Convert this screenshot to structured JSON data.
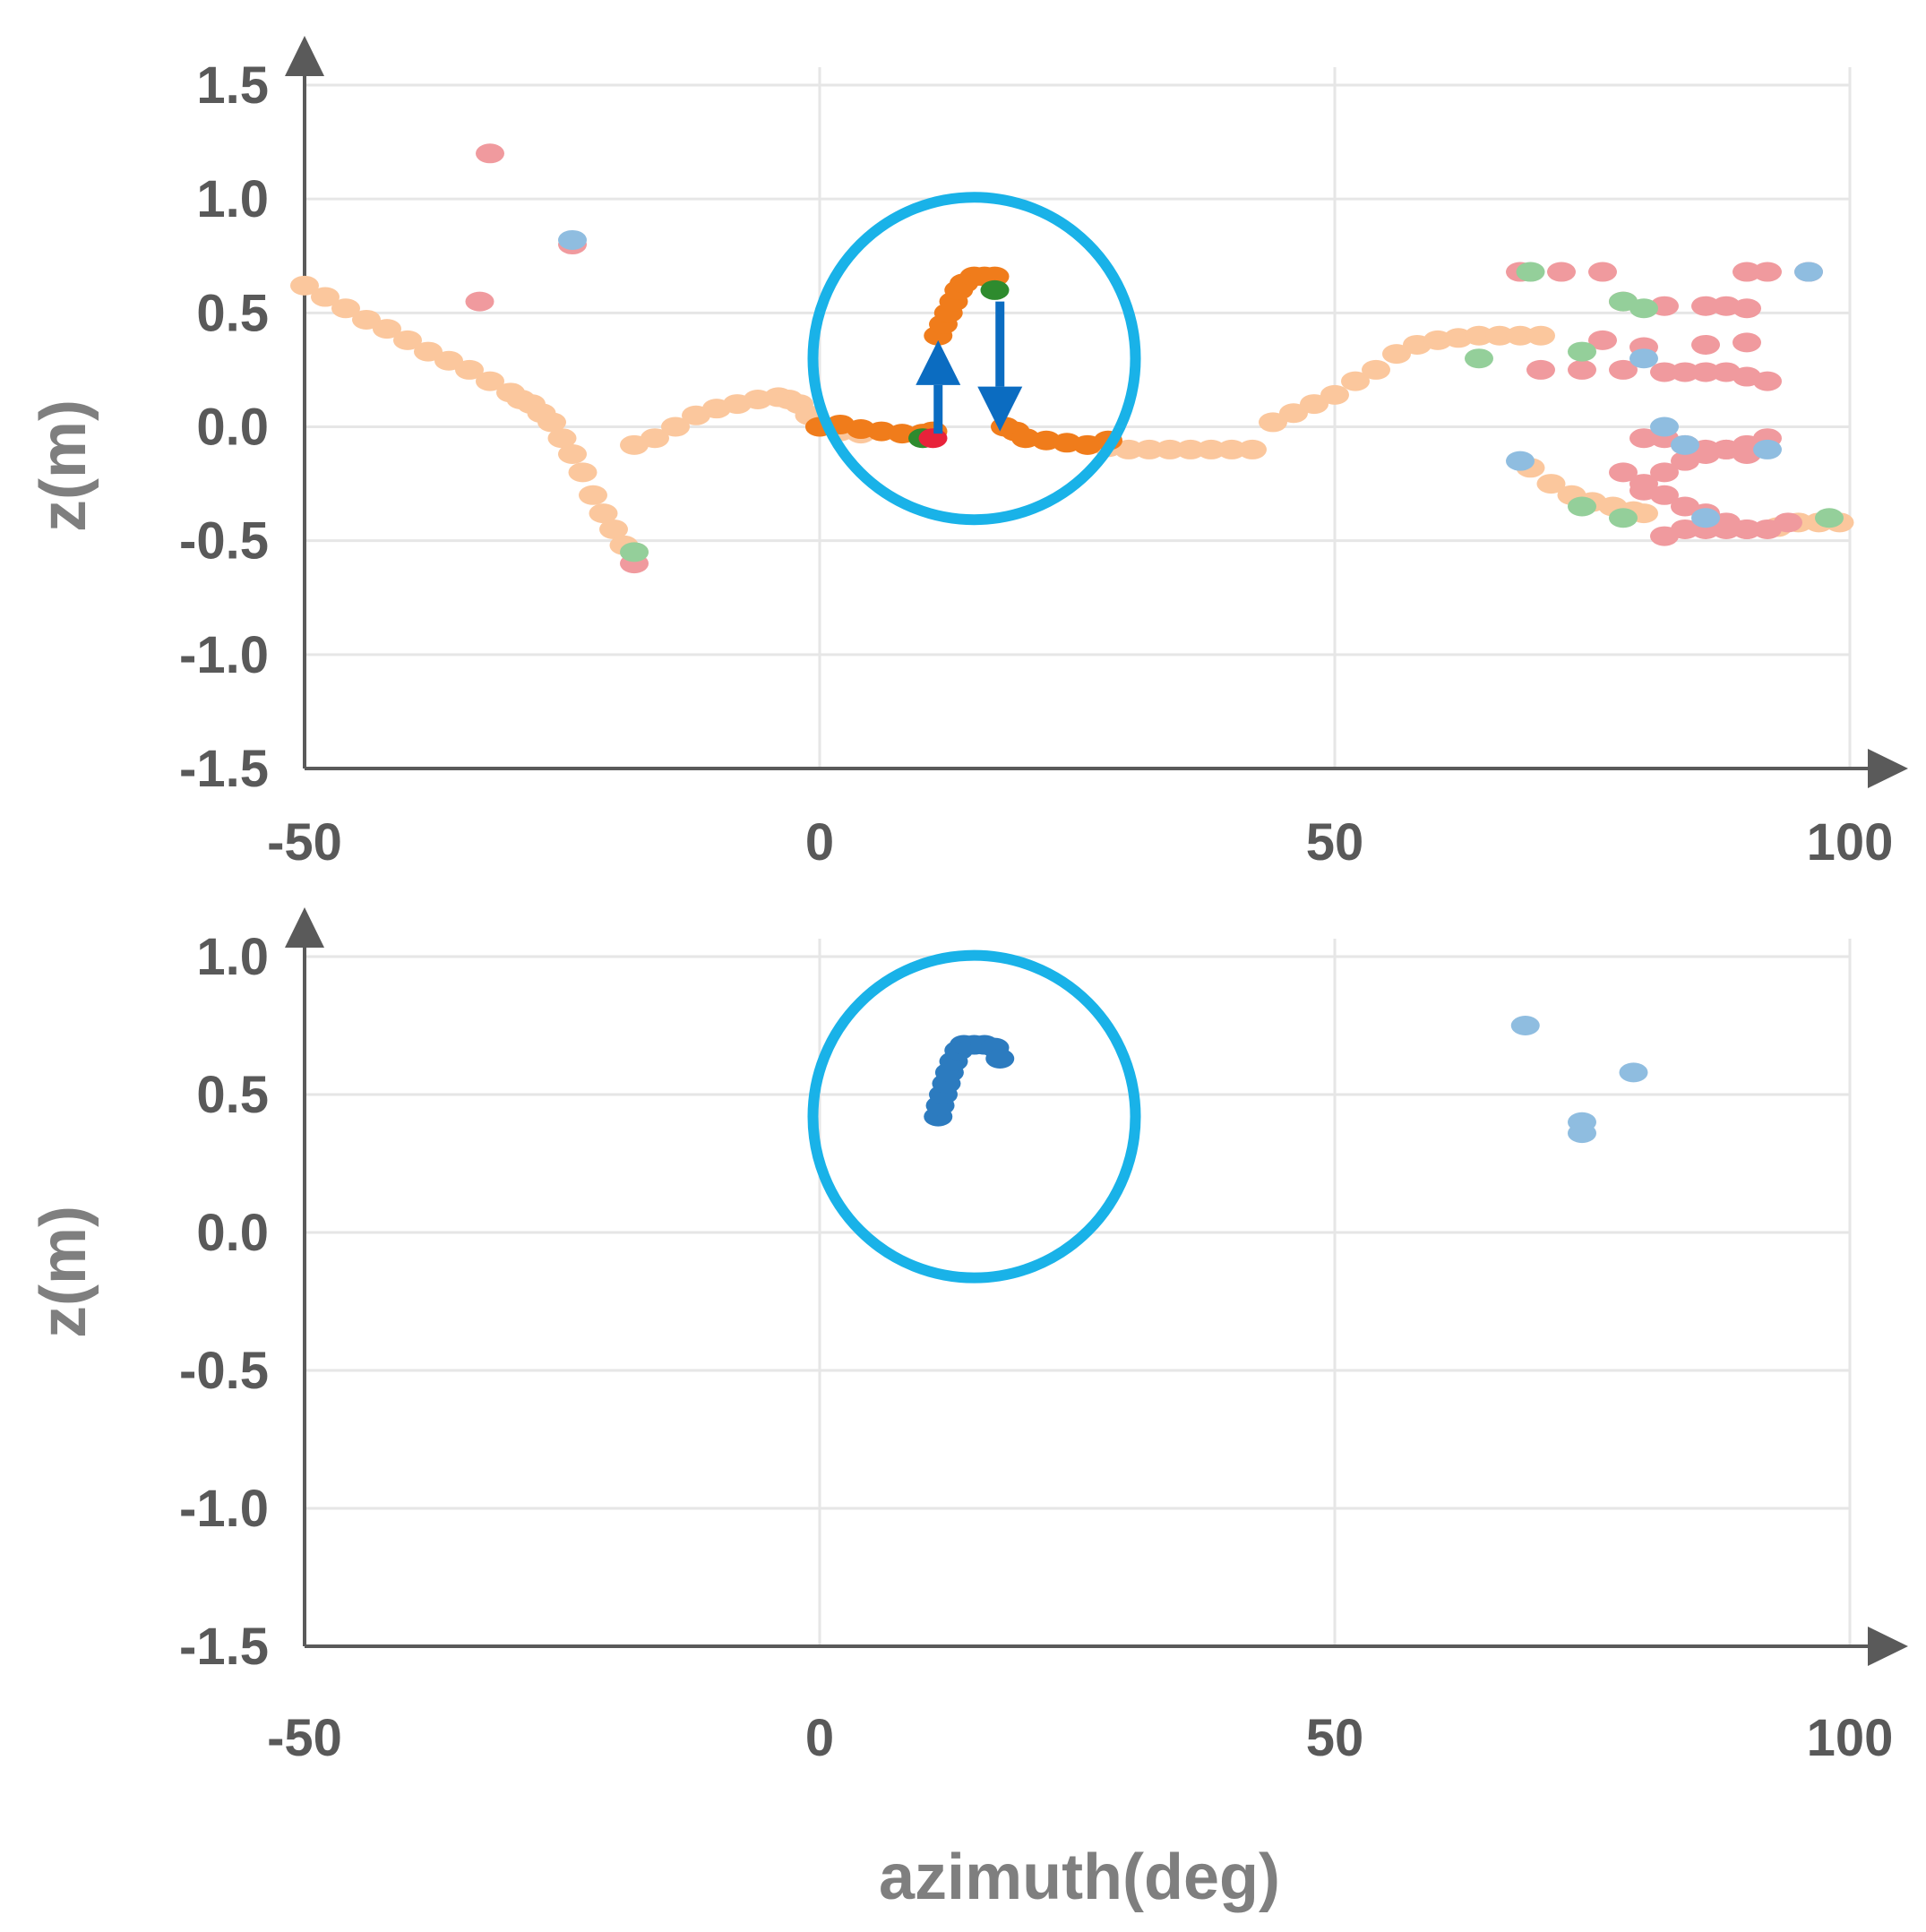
{
  "colors": {
    "peach": "#fbc79d",
    "orange": "#f07c1b",
    "pink": "#f09a9e",
    "light_green": "#94cf9a",
    "dark_green": "#2e8b2e",
    "red": "#e8223a",
    "light_blue": "#8fbde0",
    "dark_blue": "#2c7bbf",
    "arrow_blue": "#0b6cc1",
    "circle": "#19b2e8",
    "axis": "#5a5a5a",
    "grid": "#e6e6e6",
    "tick_text": "#595959",
    "title_text": "#7f7f7f"
  },
  "chart_data": [
    {
      "type": "scatter",
      "title": "",
      "xlabel": "",
      "ylabel": "z(m)",
      "xlim": [
        -50,
        100
      ],
      "ylim": [
        -1.5,
        1.5
      ],
      "x_ticks": [
        "-50",
        "0",
        "50",
        "100"
      ],
      "y_ticks": [
        "1.5",
        "1.0",
        "0.5",
        "0.0",
        "-0.5",
        "-1.0",
        "-1.5"
      ],
      "grid": true,
      "series": [
        {
          "color": "peach",
          "points": [
            [
              -50,
              0.62
            ],
            [
              -48,
              0.57
            ],
            [
              -46,
              0.52
            ],
            [
              -44,
              0.47
            ],
            [
              -42,
              0.43
            ],
            [
              -40,
              0.38
            ],
            [
              -38,
              0.33
            ],
            [
              -36,
              0.29
            ],
            [
              -34,
              0.25
            ],
            [
              -32,
              0.2
            ],
            [
              -30,
              0.15
            ],
            [
              -29,
              0.12
            ],
            [
              -28,
              0.1
            ],
            [
              -27,
              0.06
            ],
            [
              -26,
              0.02
            ],
            [
              -25,
              -0.05
            ],
            [
              -24,
              -0.12
            ],
            [
              -23,
              -0.2
            ],
            [
              -22,
              -0.3
            ],
            [
              -21,
              -0.38
            ],
            [
              -20,
              -0.45
            ],
            [
              -19,
              -0.52
            ],
            [
              -18,
              -0.55
            ],
            [
              -18,
              -0.08
            ],
            [
              -16,
              -0.05
            ],
            [
              -14,
              0
            ],
            [
              -12,
              0.05
            ],
            [
              -10,
              0.08
            ],
            [
              -8,
              0.1
            ],
            [
              -6,
              0.12
            ],
            [
              -4,
              0.13
            ],
            [
              -3,
              0.12
            ],
            [
              -2,
              0.1
            ],
            [
              -1,
              0.05
            ],
            [
              0,
              0
            ],
            [
              2,
              -0.02
            ],
            [
              4,
              -0.03
            ],
            [
              26,
              -0.08
            ],
            [
              28,
              -0.09
            ],
            [
              30,
              -0.1
            ],
            [
              32,
              -0.1
            ],
            [
              34,
              -0.1
            ],
            [
              36,
              -0.1
            ],
            [
              38,
              -0.1
            ],
            [
              40,
              -0.1
            ],
            [
              42,
              -0.1
            ],
            [
              44,
              0.02
            ],
            [
              46,
              0.06
            ],
            [
              48,
              0.1
            ],
            [
              50,
              0.14
            ],
            [
              52,
              0.2
            ],
            [
              54,
              0.25
            ],
            [
              56,
              0.32
            ],
            [
              58,
              0.36
            ],
            [
              60,
              0.38
            ],
            [
              62,
              0.39
            ],
            [
              64,
              0.4
            ],
            [
              66,
              0.4
            ],
            [
              68,
              0.4
            ],
            [
              70,
              0.4
            ],
            [
              69,
              -0.18
            ],
            [
              71,
              -0.25
            ],
            [
              73,
              -0.3
            ],
            [
              75,
              -0.33
            ],
            [
              77,
              -0.35
            ],
            [
              79,
              -0.37
            ],
            [
              80,
              -0.38
            ],
            [
              93,
              -0.44
            ],
            [
              95,
              -0.42
            ],
            [
              97,
              -0.42
            ],
            [
              99,
              -0.42
            ]
          ]
        },
        {
          "color": "orange",
          "points": [
            [
              0,
              0
            ],
            [
              2,
              0.01
            ],
            [
              4,
              -0.01
            ],
            [
              6,
              -0.02
            ],
            [
              8,
              -0.03
            ],
            [
              10,
              -0.03
            ],
            [
              11,
              -0.02
            ],
            [
              11.5,
              0.4
            ],
            [
              12,
              0.45
            ],
            [
              12.5,
              0.5
            ],
            [
              13,
              0.55
            ],
            [
              13.5,
              0.6
            ],
            [
              14,
              0.63
            ],
            [
              15,
              0.66
            ],
            [
              16,
              0.66
            ],
            [
              17,
              0.66
            ],
            [
              18,
              0
            ],
            [
              19,
              -0.02
            ],
            [
              20,
              -0.05
            ],
            [
              22,
              -0.06
            ],
            [
              24,
              -0.07
            ],
            [
              26,
              -0.08
            ],
            [
              28,
              -0.06
            ]
          ]
        },
        {
          "color": "pink",
          "points": [
            [
              -32,
              1.2
            ],
            [
              -33,
              0.55
            ],
            [
              -24,
              0.8
            ],
            [
              68,
              0.68
            ],
            [
              72,
              0.68
            ],
            [
              76,
              0.68
            ],
            [
              90,
              0.68
            ],
            [
              92,
              0.68
            ],
            [
              96,
              0.68
            ],
            [
              78,
              0.55
            ],
            [
              82,
              0.53
            ],
            [
              86,
              0.53
            ],
            [
              88,
              0.53
            ],
            [
              90,
              0.52
            ],
            [
              76,
              0.38
            ],
            [
              80,
              0.35
            ],
            [
              86,
              0.36
            ],
            [
              90,
              0.37
            ],
            [
              70,
              0.25
            ],
            [
              74,
              0.25
            ],
            [
              78,
              0.25
            ],
            [
              82,
              0.24
            ],
            [
              84,
              0.24
            ],
            [
              86,
              0.24
            ],
            [
              88,
              0.24
            ],
            [
              90,
              0.22
            ],
            [
              92,
              0.2
            ],
            [
              80,
              -0.05
            ],
            [
              82,
              -0.05
            ],
            [
              84,
              -0.08
            ],
            [
              86,
              -0.1
            ],
            [
              88,
              -0.1
            ],
            [
              90,
              -0.08
            ],
            [
              92,
              -0.05
            ],
            [
              78,
              -0.2
            ],
            [
              80,
              -0.25
            ],
            [
              82,
              -0.2
            ],
            [
              84,
              -0.15
            ],
            [
              86,
              -0.12
            ],
            [
              88,
              -0.1
            ],
            [
              90,
              -0.12
            ],
            [
              80,
              -0.28
            ],
            [
              82,
              -0.3
            ],
            [
              84,
              -0.35
            ],
            [
              86,
              -0.38
            ],
            [
              88,
              -0.42
            ],
            [
              90,
              -0.45
            ],
            [
              92,
              -0.45
            ],
            [
              94,
              -0.42
            ],
            [
              82,
              -0.48
            ],
            [
              84,
              -0.45
            ],
            [
              86,
              -0.45
            ],
            [
              88,
              -0.45
            ],
            [
              90,
              -0.45
            ],
            [
              -18,
              -0.6
            ]
          ]
        },
        {
          "color": "light_green",
          "points": [
            [
              69,
              0.68
            ],
            [
              78,
              0.55
            ],
            [
              80,
              0.52
            ],
            [
              74,
              0.33
            ],
            [
              64,
              0.3
            ],
            [
              74,
              -0.35
            ],
            [
              78,
              -0.4
            ],
            [
              98,
              -0.4
            ],
            [
              -18,
              -0.55
            ]
          ]
        },
        {
          "color": "light_blue",
          "points": [
            [
              -24,
              0.82
            ],
            [
              68,
              -0.15
            ],
            [
              82,
              0.0
            ],
            [
              84,
              -0.08
            ],
            [
              92,
              -0.1
            ],
            [
              96,
              0.68
            ],
            [
              80,
              0.3
            ],
            [
              86,
              -0.4
            ]
          ]
        },
        {
          "color": "dark_green",
          "points": [
            [
              10,
              -0.05
            ],
            [
              17,
              0.6
            ]
          ]
        },
        {
          "color": "red",
          "points": [
            [
              11,
              -0.05
            ]
          ]
        }
      ],
      "annotations": [
        {
          "type": "arrow",
          "direction": "up",
          "x": 11.5,
          "from": -0.03,
          "to": 0.38
        },
        {
          "type": "arrow",
          "direction": "down",
          "x": 17.5,
          "from": 0.55,
          "to": -0.02
        },
        {
          "type": "circle",
          "cx": 15,
          "cy": 0.3
        }
      ]
    },
    {
      "type": "scatter",
      "title": "",
      "xlabel": "azimuth(deg)",
      "ylabel": "z(m)",
      "xlim": [
        -50,
        100
      ],
      "ylim": [
        -1.5,
        1.0
      ],
      "x_ticks": [
        "-50",
        "0",
        "50",
        "100"
      ],
      "y_ticks": [
        "1.0",
        "0.5",
        "0.0",
        "-0.5",
        "-1.0",
        "-1.5"
      ],
      "grid": true,
      "series": [
        {
          "color": "dark_blue",
          "points": [
            [
              11.5,
              0.42
            ],
            [
              11.7,
              0.46
            ],
            [
              12,
              0.5
            ],
            [
              12.3,
              0.54
            ],
            [
              12.6,
              0.58
            ],
            [
              13,
              0.62
            ],
            [
              13.5,
              0.66
            ],
            [
              14,
              0.68
            ],
            [
              15,
              0.68
            ],
            [
              16,
              0.68
            ],
            [
              17,
              0.67
            ],
            [
              17.5,
              0.63
            ]
          ]
        },
        {
          "color": "light_blue",
          "points": [
            [
              68.5,
              0.75
            ],
            [
              79,
              0.58
            ],
            [
              74,
              0.4
            ],
            [
              74,
              0.36
            ]
          ]
        }
      ],
      "annotations": [
        {
          "type": "circle",
          "cx": 15,
          "cy": 0.42
        }
      ]
    }
  ]
}
